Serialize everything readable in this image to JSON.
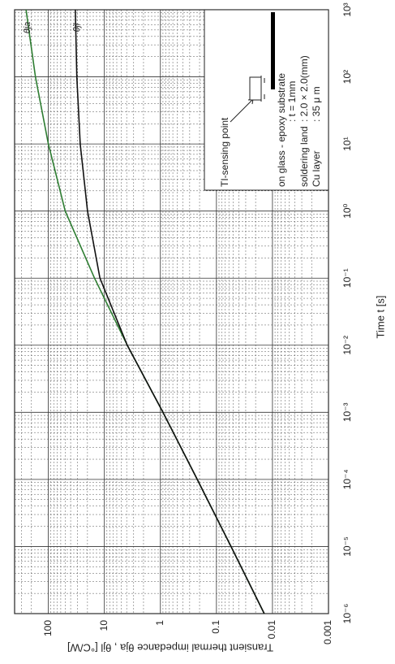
{
  "chart_data": {
    "type": "line",
    "x_label": "Time t [s]",
    "y_label": "Transient thermal impedance θja , θjl [°C/W]",
    "x": [
      1e-06,
      1e-05,
      0.0001,
      0.001,
      0.01,
      0.1,
      1,
      10,
      100,
      1000
    ],
    "series": [
      {
        "name": "θja",
        "color": "#2e7d32",
        "values": [
          0.014,
          0.055,
          0.22,
          0.9,
          3.9,
          15,
          50,
          100,
          170,
          250
        ]
      },
      {
        "name": "θjl",
        "color": "#111111",
        "values": [
          0.014,
          0.055,
          0.22,
          0.9,
          3.9,
          12,
          20,
          27,
          31,
          33
        ]
      }
    ],
    "xlim": [
      1e-06,
      1000
    ],
    "xticks": [
      {
        "value": 1e-06,
        "label": "10⁻⁶"
      },
      {
        "value": 1e-05,
        "label": "10⁻⁵"
      },
      {
        "value": 0.0001,
        "label": "10⁻⁴"
      },
      {
        "value": 0.001,
        "label": "10⁻³"
      },
      {
        "value": 0.01,
        "label": "10⁻²"
      },
      {
        "value": 0.1,
        "label": "10⁻¹"
      },
      {
        "value": 1,
        "label": "10⁰"
      },
      {
        "value": 10,
        "label": "10¹"
      },
      {
        "value": 100,
        "label": "10²"
      },
      {
        "value": 1000,
        "label": "10³"
      }
    ],
    "ylim": [
      0.001,
      400
    ],
    "yticks": [
      0.001,
      0.01,
      0.1,
      1,
      10,
      100
    ],
    "x_log": true,
    "y_log": true,
    "grid": true,
    "legend": {
      "sensing": "TI-sensing point",
      "lines": [
        "on glass - epoxy substrate",
        ": t = 1mm",
        "soldering land",
        ": 2.0 × 2.0(mm)",
        "Cu layer",
        ": 35 μ m"
      ]
    }
  }
}
